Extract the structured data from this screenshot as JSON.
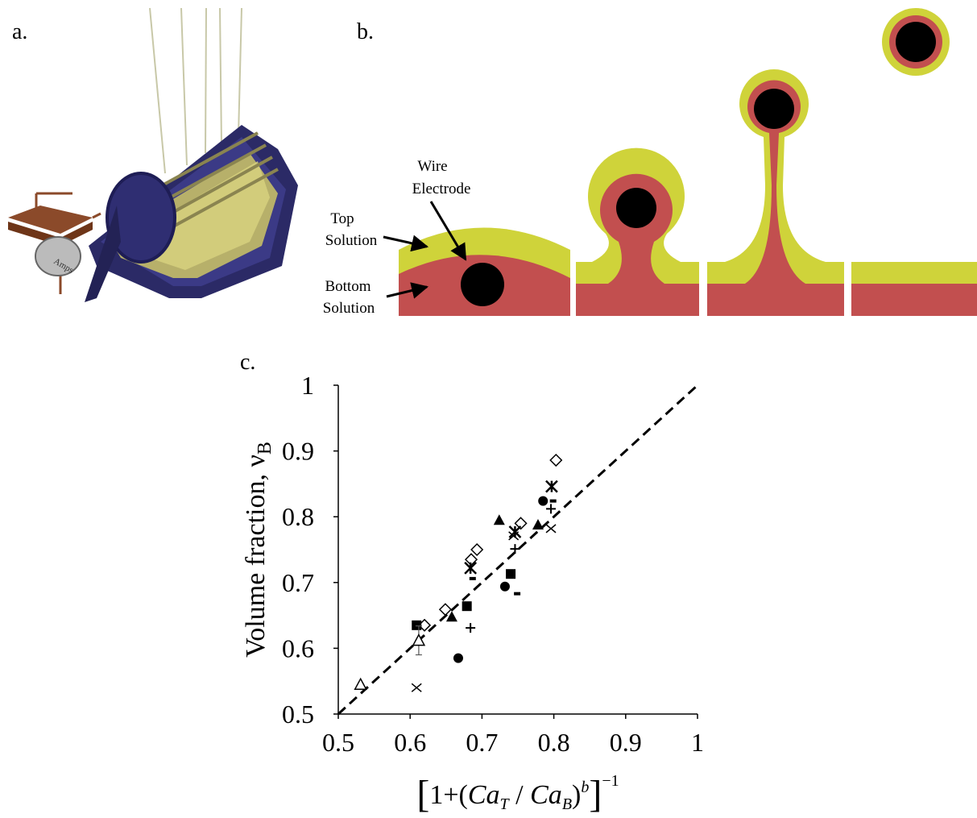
{
  "panel_labels": {
    "a": "a.",
    "b": "b.",
    "c": "c."
  },
  "apparatus": {
    "meter_label": "Amps"
  },
  "diagram": {
    "wire_label": [
      "Wire",
      "Electrode"
    ],
    "top_label": [
      "Top",
      "Solution"
    ],
    "bottom_label": [
      "Bottom",
      "Solution"
    ]
  },
  "chart_data": {
    "type": "scatter",
    "x_label_parts": [
      "[",
      "1+(",
      "Ca",
      "T",
      " / ",
      "Ca",
      "B",
      ")",
      "b",
      "]",
      "−1"
    ],
    "y_label": "Volume fraction, ν",
    "y_label_sub": "B",
    "xlim": [
      0.5,
      1
    ],
    "ylim": [
      0.5,
      1
    ],
    "xticks": [
      0.5,
      0.6,
      0.7,
      0.8,
      0.9,
      1
    ],
    "yticks": [
      0.5,
      0.6,
      0.7,
      0.8,
      0.9,
      1
    ],
    "series": [
      {
        "marker": "diamond-open",
        "color": "#000000",
        "x": [
          0.803,
          0.754,
          0.693,
          0.685,
          0.649,
          0.62
        ],
        "values": [
          0.886,
          0.79,
          0.75,
          0.735,
          0.659,
          0.635
        ]
      },
      {
        "marker": "asterisk",
        "color": "#000000",
        "x": [
          0.797,
          0.746,
          0.684
        ],
        "values": [
          0.846,
          0.777,
          0.722
        ]
      },
      {
        "marker": "x",
        "color": "#000000",
        "x": [
          0.796,
          0.609,
          0.744
        ],
        "values": [
          0.782,
          0.54,
          0.771
        ]
      },
      {
        "marker": "plus",
        "color": "#000000",
        "x": [
          0.796,
          0.746,
          0.684
        ],
        "values": [
          0.812,
          0.751,
          0.631
        ]
      },
      {
        "marker": "dash",
        "color": "#000000",
        "x": [
          0.799,
          0.749,
          0.687
        ],
        "values": [
          0.824,
          0.683,
          0.706
        ]
      },
      {
        "marker": "square",
        "color": "#000000",
        "x": [
          0.609,
          0.679,
          0.74
        ],
        "values": [
          0.635,
          0.664,
          0.713
        ]
      },
      {
        "marker": "triangle",
        "color": "#000000",
        "x": [
          0.724,
          0.778,
          0.658
        ],
        "values": [
          0.795,
          0.788,
          0.648
        ]
      },
      {
        "marker": "circle",
        "color": "#000000",
        "x": [
          0.785,
          0.732,
          0.667
        ],
        "values": [
          0.824,
          0.694,
          0.585
        ]
      },
      {
        "marker": "triangle-open",
        "color": "#000000",
        "x": [
          0.531,
          0.612
        ],
        "values": [
          0.545,
          0.612
        ],
        "errors": [
          null,
          0.022
        ]
      }
    ],
    "fit_line": {
      "x": [
        0.5,
        1
      ],
      "values": [
        0.5,
        1
      ],
      "style": "dashed",
      "color": "#000000"
    }
  }
}
